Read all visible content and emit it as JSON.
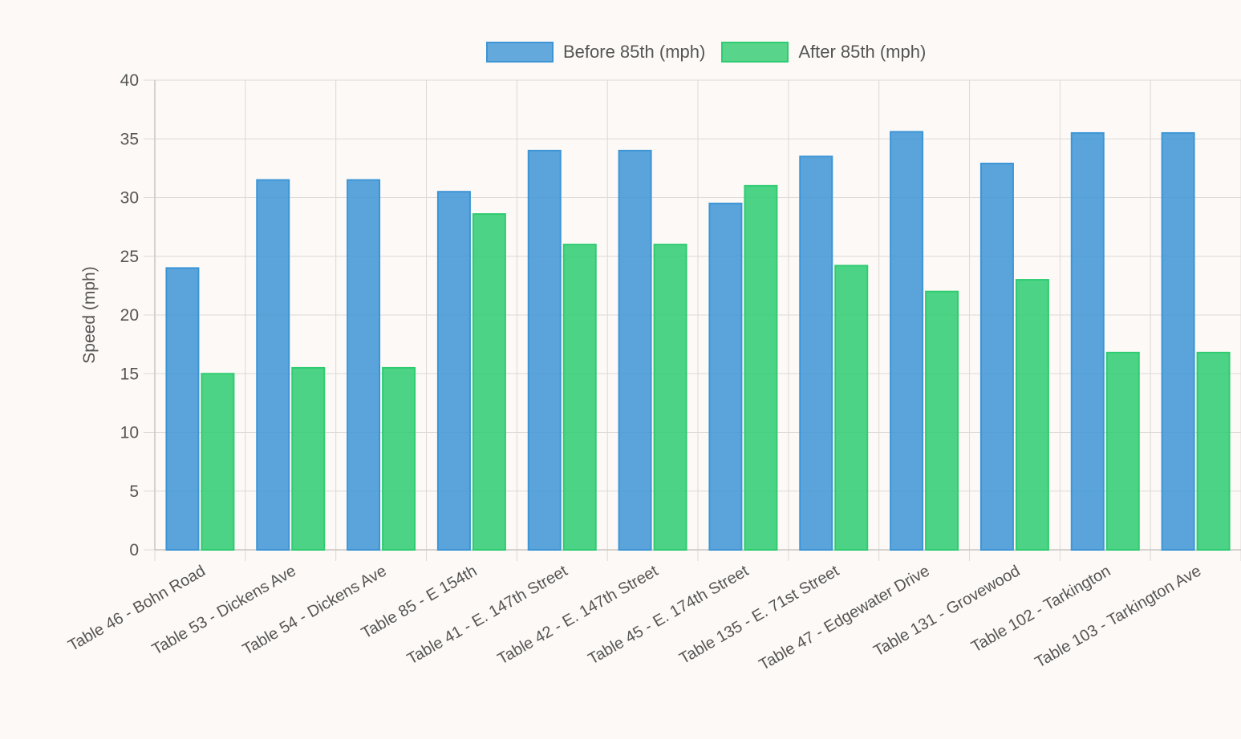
{
  "chart_data": {
    "type": "bar",
    "title": "",
    "xlabel": "",
    "ylabel": "Speed (mph)",
    "ylim": [
      0,
      40
    ],
    "yticks": [
      0,
      5,
      10,
      15,
      20,
      25,
      30,
      35,
      40
    ],
    "grid": true,
    "legend_position": "top",
    "categories": [
      "Table 46 - Bohn Road",
      "Table 53 - Dickens Ave",
      "Table 54 - Dickens Ave",
      "Table 85 - E 154th",
      "Table 41 - E. 147th Street",
      "Table 42 - E. 147th Street",
      "Table 45 - E. 174th Street",
      "Table 135 - E. 71st Street",
      "Table 47 - Edgewater Drive",
      "Table 131 - Grovewood",
      "Table 102 - Tarkington",
      "Table 103 - Tarkington Ave"
    ],
    "series": [
      {
        "name": "Before 85th (mph)",
        "color": "#3d95d6",
        "values": [
          24,
          31.5,
          31.5,
          30.5,
          34,
          34,
          29.5,
          33.5,
          35.6,
          32.9,
          35.5,
          35.5
        ]
      },
      {
        "name": "After 85th (mph)",
        "color": "#2ecc71",
        "values": [
          15,
          15.5,
          15.5,
          28.6,
          26,
          26,
          31,
          24.2,
          22,
          23,
          16.8,
          16.8
        ]
      }
    ]
  }
}
